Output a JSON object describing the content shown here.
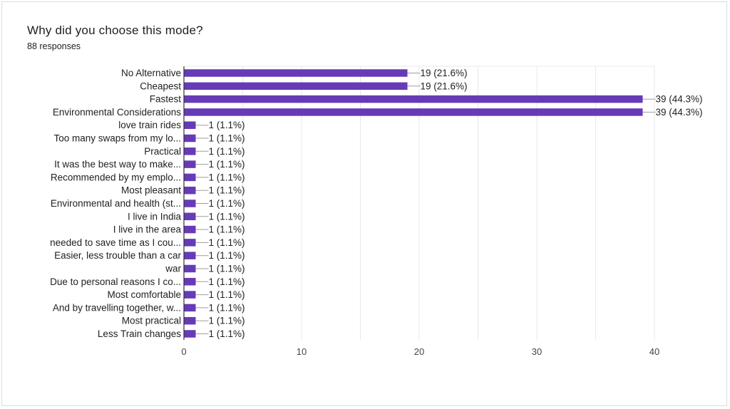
{
  "title": "Why did you choose this mode?",
  "subtitle": "88 responses",
  "colors": {
    "bar": "#673ab7",
    "grid": "#e8e8e8",
    "axis": "#333333",
    "leader": "#9e9e9e"
  },
  "chart_data": {
    "type": "bar",
    "orientation": "horizontal",
    "title": "Why did you choose this mode?",
    "subtitle": "88 responses",
    "categories": [
      "No Alternative",
      "Cheapest",
      "Fastest",
      "Environmental Considerations",
      "love train rides",
      "Too many swaps from my lo...",
      "Practical",
      "It was the best way to make...",
      "Recommended by my emplo...",
      "Most pleasant",
      "Environmental and health (st...",
      "I live in India",
      "I live in the area",
      "needed to save time as I cou...",
      "Easier, less trouble than a car",
      "war",
      "Due to personal reasons I co...",
      "Most comfortable",
      "And by travelling together, w...",
      "Most practical",
      "Less Train changes"
    ],
    "values": [
      19,
      19,
      39,
      39,
      1,
      1,
      1,
      1,
      1,
      1,
      1,
      1,
      1,
      1,
      1,
      1,
      1,
      1,
      1,
      1,
      1
    ],
    "data_labels": [
      "19 (21.6%)",
      "19 (21.6%)",
      "39 (44.3%)",
      "39 (44.3%)",
      "1 (1.1%)",
      "1 (1.1%)",
      "1 (1.1%)",
      "1 (1.1%)",
      "1 (1.1%)",
      "1 (1.1%)",
      "1 (1.1%)",
      "1 (1.1%)",
      "1 (1.1%)",
      "1 (1.1%)",
      "1 (1.1%)",
      "1 (1.1%)",
      "1 (1.1%)",
      "1 (1.1%)",
      "1 (1.1%)",
      "1 (1.1%)",
      "1 (1.1%)"
    ],
    "xlim": [
      0,
      40
    ],
    "xticks": [
      0,
      10,
      20,
      30,
      40
    ],
    "xlabel": "",
    "ylabel": "",
    "grid": true,
    "legend": "none"
  }
}
